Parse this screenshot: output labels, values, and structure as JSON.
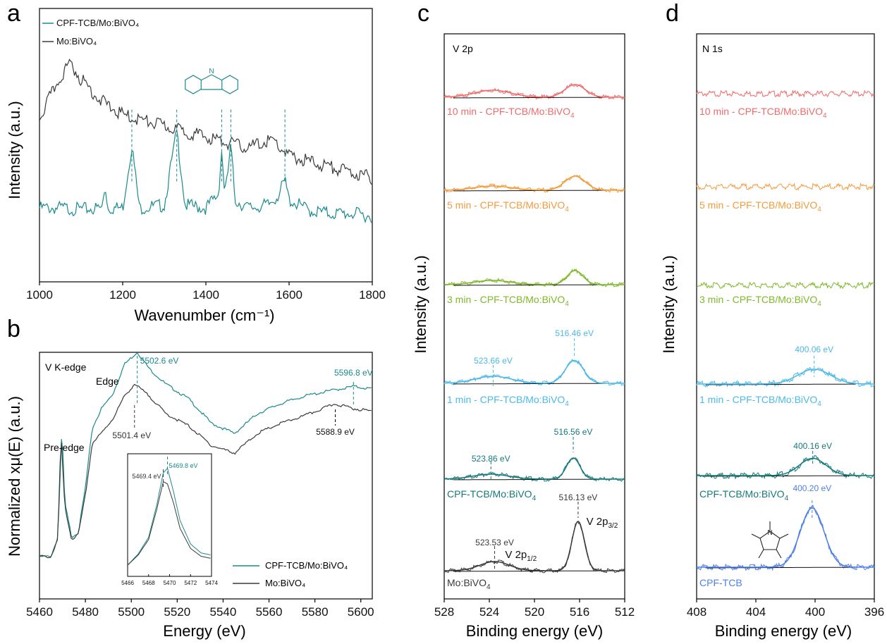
{
  "colors": {
    "teal": "#1a8a8c",
    "gray": "#3a3a3a",
    "black": "#000000",
    "red": "#ef6b6b",
    "orange": "#f39a3c",
    "green": "#7fb82a",
    "cyan": "#4cb9e8",
    "darkteal": "#15797b",
    "blue": "#4f7fe6",
    "mo": "#3a3a3a"
  },
  "panels": {
    "a": {
      "letter": "a"
    },
    "b": {
      "letter": "b"
    },
    "c": {
      "letter": "c"
    },
    "d": {
      "letter": "d"
    }
  },
  "chart_data": [
    {
      "panel": "a",
      "type": "line",
      "title": "",
      "xlabel": "Wavenumber (cm⁻¹)",
      "ylabel": "Intensity (a.u.)",
      "xlim": [
        1000,
        1800
      ],
      "xticks": [
        "1000",
        "1200",
        "1400",
        "1600",
        "1800"
      ],
      "legend": {
        "placement": "top-left",
        "entries": [
          "CPF-TCB/Mo:BiVO₄",
          "Mo:BiVO₄"
        ]
      },
      "series": [
        {
          "name": "CPF-TCB/Mo:BiVO₄",
          "color_key": "teal",
          "x": [
            1000,
            1050,
            1100,
            1150,
            1158,
            1165,
            1200,
            1222,
            1240,
            1300,
            1330,
            1350,
            1400,
            1430,
            1438,
            1445,
            1450,
            1460,
            1470,
            1500,
            1550,
            1575,
            1590,
            1600,
            1650,
            1700,
            1750,
            1800
          ],
          "y": [
            0.27,
            0.27,
            0.265,
            0.27,
            0.35,
            0.27,
            0.27,
            0.5,
            0.27,
            0.28,
            0.55,
            0.28,
            0.27,
            0.32,
            0.48,
            0.33,
            0.36,
            0.5,
            0.3,
            0.27,
            0.28,
            0.32,
            0.37,
            0.3,
            0.26,
            0.25,
            0.25,
            0.24
          ]
        },
        {
          "name": "Mo:BiVO₄",
          "color_key": "gray",
          "x": [
            1000,
            1020,
            1050,
            1075,
            1100,
            1150,
            1200,
            1300,
            1400,
            1500,
            1560,
            1600,
            1700,
            1800
          ],
          "y": [
            0.6,
            0.66,
            0.75,
            0.8,
            0.74,
            0.66,
            0.61,
            0.57,
            0.53,
            0.49,
            0.52,
            0.46,
            0.42,
            0.38
          ]
        }
      ],
      "annotations": {
        "peak_marks": [
          1222,
          1330,
          1438,
          1460,
          1590
        ]
      }
    },
    {
      "panel": "b",
      "type": "line",
      "title": "V K-edge",
      "xlabel": "Energy (eV)",
      "ylabel": "Normalized xμ(E) (a.u.)",
      "xlim": [
        5460,
        5605
      ],
      "xticks": [
        "5460",
        "5480",
        "5500",
        "5520",
        "5540",
        "5560",
        "5580",
        "5600"
      ],
      "legend": {
        "placement": "bottom-right",
        "entries": [
          "CPF-TCB/Mo:BiVO₄",
          "Mo:BiVO₄"
        ]
      },
      "series": [
        {
          "name": "CPF-TCB/Mo:BiVO₄",
          "color_key": "teal",
          "x": [
            5460,
            5465,
            5468,
            5469.8,
            5471,
            5474,
            5477,
            5480,
            5483,
            5487,
            5492,
            5497,
            5502.6,
            5508,
            5515,
            5525,
            5535,
            5545,
            5555,
            5565,
            5575,
            5585,
            5596.8,
            5605
          ],
          "y": [
            0.2,
            0.2,
            0.28,
            0.72,
            0.42,
            0.28,
            0.3,
            0.48,
            0.72,
            0.8,
            0.86,
            0.98,
            1.03,
            0.96,
            0.9,
            0.84,
            0.74,
            0.7,
            0.78,
            0.82,
            0.85,
            0.87,
            0.89,
            0.88
          ]
        },
        {
          "name": "Mo:BiVO₄",
          "color_key": "gray",
          "x": [
            5460,
            5465,
            5468,
            5469.4,
            5471,
            5474,
            5477,
            5480,
            5483,
            5487,
            5492,
            5497,
            5501.4,
            5508,
            5515,
            5525,
            5535,
            5545,
            5555,
            5565,
            5575,
            5588.9,
            5597,
            5605
          ],
          "y": [
            0.2,
            0.2,
            0.27,
            0.7,
            0.4,
            0.27,
            0.29,
            0.45,
            0.66,
            0.7,
            0.76,
            0.85,
            0.9,
            0.85,
            0.78,
            0.73,
            0.65,
            0.62,
            0.7,
            0.74,
            0.77,
            0.82,
            0.8,
            0.79
          ]
        }
      ],
      "annotations": [
        {
          "text": "5502.6 eV",
          "x": 5502.6,
          "color_key": "teal"
        },
        {
          "text": "5501.4 eV",
          "x": 5501.4,
          "color_key": "gray"
        },
        {
          "text": "5596.8 eV",
          "x": 5596.8,
          "color_key": "teal"
        },
        {
          "text": "5588.9 eV",
          "x": 5588.9,
          "color_key": "black"
        },
        {
          "text": "Edge"
        },
        {
          "text": "Pre-edge"
        }
      ],
      "inset": {
        "xlim": [
          5466,
          5474
        ],
        "xticks": [
          "5466",
          "5468",
          "5470",
          "5472",
          "5474"
        ],
        "labels": [
          {
            "text": "5469.8 eV",
            "x": 5469.8,
            "color_key": "teal"
          },
          {
            "text": "5469.4 eV",
            "x": 5469.4,
            "color_key": "gray"
          }
        ],
        "series": [
          {
            "color_key": "teal",
            "x": [
              5466,
              5467,
              5468,
              5468.8,
              5469.4,
              5469.8,
              5470.4,
              5471,
              5472,
              5473,
              5474
            ],
            "y": [
              0.05,
              0.15,
              0.3,
              0.6,
              0.88,
              0.92,
              0.7,
              0.45,
              0.24,
              0.16,
              0.14
            ]
          },
          {
            "color_key": "gray",
            "x": [
              5466,
              5467,
              5468,
              5468.8,
              5469.4,
              5469.8,
              5470.4,
              5471,
              5472,
              5473,
              5474
            ],
            "y": [
              0.05,
              0.14,
              0.28,
              0.56,
              0.8,
              0.78,
              0.6,
              0.38,
              0.2,
              0.13,
              0.11
            ]
          }
        ]
      }
    },
    {
      "panel": "c",
      "type": "line",
      "title": "V 2p",
      "xlabel": "Binding energy (eV)",
      "ylabel": "Intensity (a.u.)",
      "xlim": [
        528,
        512
      ],
      "xticks": [
        "528",
        "524",
        "520",
        "516",
        "512"
      ],
      "series": [
        {
          "name": "10 min - CPF-TCB/Mo:BiVO₄",
          "color_key": "red",
          "peaks": [
            {
              "center": 523.7,
              "height": 0.02,
              "width": 1.6
            },
            {
              "center": 516.4,
              "height": 0.036,
              "width": 0.9
            }
          ]
        },
        {
          "name": "5 min - CPF-TCB/Mo:BiVO₄",
          "color_key": "orange",
          "peaks": [
            {
              "center": 523.7,
              "height": 0.012,
              "width": 1.6
            },
            {
              "center": 516.4,
              "height": 0.04,
              "width": 0.9
            }
          ]
        },
        {
          "name": "3 min - CPF-TCB/Mo:BiVO₄",
          "color_key": "green",
          "peaks": [
            {
              "center": 523.7,
              "height": 0.012,
              "width": 1.6
            },
            {
              "center": 516.4,
              "height": 0.04,
              "width": 0.7
            }
          ]
        },
        {
          "name": "1 min - CPF-TCB/Mo:BiVO₄",
          "color_key": "cyan",
          "peaks": [
            {
              "center": 523.66,
              "height": 0.02,
              "width": 1.6
            },
            {
              "center": 516.46,
              "height": 0.065,
              "width": 0.8
            }
          ]
        },
        {
          "name": "CPF-TCB/Mo:BiVO₄",
          "color_key": "darkteal",
          "peaks": [
            {
              "center": 523.86,
              "height": 0.014,
              "width": 1.6
            },
            {
              "center": 516.56,
              "height": 0.06,
              "width": 0.6
            }
          ]
        },
        {
          "name": "Mo:BiVO₄",
          "color_key": "mo",
          "peaks": [
            {
              "center": 523.53,
              "height": 0.026,
              "width": 1.3
            },
            {
              "center": 516.13,
              "height": 0.14,
              "width": 0.55
            }
          ]
        }
      ],
      "annotations": [
        "523.66 eV",
        "516.46 eV",
        "523.86 eV",
        "516.56 eV",
        "523.53 eV",
        "516.13 eV"
      ],
      "peak_labels": {
        "p12_main": "V 2p",
        "p12_sub": "1/2",
        "p32_main": "V 2p",
        "p32_sub": "3/2"
      }
    },
    {
      "panel": "d",
      "type": "line",
      "title": "N 1s",
      "xlabel": "Binding energy (eV)",
      "ylabel": "Intensity (a.u.)",
      "xlim": [
        408,
        396
      ],
      "xticks": [
        "408",
        "404",
        "400",
        "396"
      ],
      "series": [
        {
          "name": "10 min - CPF-TCB/Mo:BiVO₄",
          "color_key": "red",
          "peaks": []
        },
        {
          "name": "5 min - CPF-TCB/Mo:BiVO₄",
          "color_key": "orange",
          "peaks": []
        },
        {
          "name": "3 min - CPF-TCB/Mo:BiVO₄",
          "color_key": "green",
          "peaks": []
        },
        {
          "name": "1 min - CPF-TCB/Mo:BiVO₄",
          "color_key": "cyan",
          "peaks": [
            {
              "center": 400.06,
              "height": 0.03,
              "width": 1.1
            }
          ]
        },
        {
          "name": "CPF-TCB/Mo:BiVO₄",
          "color_key": "darkteal",
          "peaks": [
            {
              "center": 400.16,
              "height": 0.035,
              "width": 0.9
            }
          ]
        },
        {
          "name": "CPF-TCB",
          "color_key": "blue",
          "peaks": [
            {
              "center": 400.2,
              "height": 0.12,
              "width": 0.8
            }
          ]
        }
      ],
      "annotations": [
        "400.06 eV",
        "400.16 eV",
        "400.20 eV"
      ]
    }
  ]
}
